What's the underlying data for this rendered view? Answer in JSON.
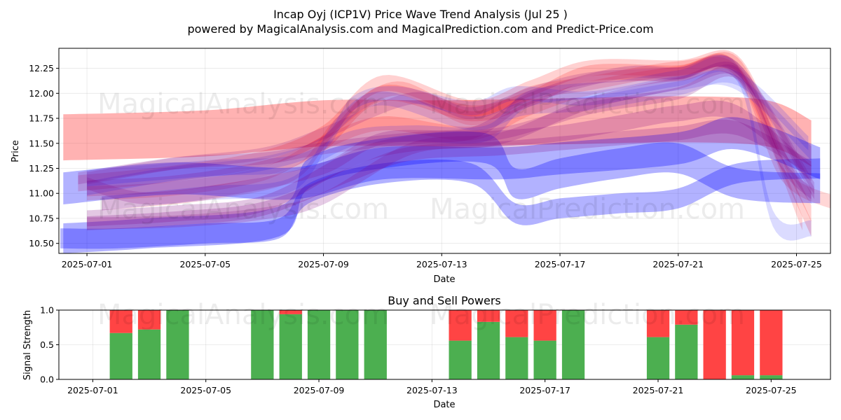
{
  "chart_data": [
    {
      "type": "line",
      "title": "Incap Oyj (ICP1V) Price Wave Trend Analysis (Jul 25 )",
      "subtitle": "powered by MagicalAnalysis.com and MagicalPrediction.com and Predict-Price.com",
      "xlabel": "Date",
      "ylabel": "Price",
      "xlim": [
        -0.95,
        25.15
      ],
      "ylim": [
        10.4,
        12.45
      ],
      "x_ticks": [
        0,
        4,
        8,
        12,
        16,
        20,
        24
      ],
      "x_tick_labels": [
        "2025-07-01",
        "2025-07-05",
        "2025-07-09",
        "2025-07-13",
        "2025-07-17",
        "2025-07-21",
        "2025-07-25"
      ],
      "y_ticks": [
        10.5,
        10.75,
        11.0,
        11.25,
        11.5,
        11.75,
        12.0,
        12.25
      ],
      "y_tick_labels": [
        "10.50",
        "10.75",
        "11.00",
        "11.25",
        "11.50",
        "11.75",
        "12.00",
        "12.25"
      ],
      "grid": true,
      "series": [
        {
          "name": "red band 1",
          "color": "#ff0000",
          "opacity": 0.3,
          "width": 0.46,
          "x": [
            -0.8,
            4,
            8,
            12,
            16,
            20,
            23,
            24.5
          ],
          "y": [
            11.56,
            11.6,
            11.7,
            11.7,
            11.72,
            11.74,
            11.7,
            11.5
          ]
        },
        {
          "name": "red band 2",
          "color": "#ff0000",
          "opacity": 0.18,
          "width": 0.16,
          "x": [
            -0.3,
            3,
            6,
            8,
            10,
            13,
            15,
            17,
            20,
            22,
            23.5,
            24.5
          ],
          "y": [
            11.1,
            11.2,
            11.35,
            11.6,
            12.1,
            11.85,
            12.05,
            12.25,
            12.25,
            12.3,
            11.4,
            10.8
          ]
        },
        {
          "name": "red band 3",
          "color": "#ff0000",
          "opacity": 0.18,
          "width": 0.16,
          "x": [
            0,
            3,
            6,
            8,
            10,
            13,
            15,
            17,
            20,
            22,
            23.5,
            24.5
          ],
          "y": [
            11.05,
            11.1,
            11.25,
            11.5,
            12.0,
            11.8,
            11.95,
            12.2,
            12.2,
            12.28,
            11.3,
            10.65
          ]
        },
        {
          "name": "red band 4",
          "color": "#ff0000",
          "opacity": 0.16,
          "width": 0.14,
          "x": [
            0.5,
            4,
            7,
            8.5,
            10.5,
            13,
            15,
            17,
            20,
            22,
            23.5,
            25.3
          ],
          "y": [
            10.9,
            11.0,
            11.2,
            11.7,
            12.05,
            11.75,
            12.0,
            12.1,
            12.25,
            12.2,
            11.2,
            10.9
          ]
        },
        {
          "name": "red band 5",
          "color": "#ff0000",
          "opacity": 0.16,
          "width": 0.14,
          "x": [
            0,
            3,
            6,
            8,
            10,
            13,
            15,
            17,
            20,
            22,
            24.2
          ],
          "y": [
            11.0,
            11.05,
            11.2,
            11.5,
            11.7,
            11.6,
            11.85,
            12.05,
            12.2,
            12.22,
            10.7
          ]
        },
        {
          "name": "blue band 1",
          "color": "#0000ff",
          "opacity": 0.3,
          "width": 0.32,
          "x": [
            -0.8,
            3,
            7,
            10,
            14,
            16,
            20,
            22,
            24.8
          ],
          "y": [
            11.05,
            11.15,
            11.1,
            11.3,
            11.3,
            11.35,
            11.45,
            11.6,
            11.3
          ]
        },
        {
          "name": "blue band 2",
          "color": "#0000ff",
          "opacity": 0.3,
          "width": 0.3,
          "x": [
            -0.8,
            2,
            6.5,
            7.5,
            10,
            13.5,
            14.5,
            16,
            18,
            20,
            22,
            24.8
          ],
          "y": [
            10.55,
            10.6,
            10.72,
            11.2,
            11.4,
            11.45,
            11.1,
            11.2,
            11.3,
            11.35,
            11.1,
            11.05
          ]
        },
        {
          "name": "blue band 3",
          "color": "#0000ff",
          "opacity": 0.3,
          "width": 0.2,
          "x": [
            -0.9,
            1,
            4,
            6.5,
            7.5,
            10,
            13,
            14.5,
            16,
            18,
            20,
            22,
            24.8
          ],
          "y": [
            10.55,
            10.55,
            10.6,
            10.65,
            11.0,
            11.2,
            11.2,
            10.8,
            10.85,
            10.9,
            10.95,
            11.2,
            11.25
          ]
        },
        {
          "name": "blue band 4",
          "color": "#0000ff",
          "opacity": 0.14,
          "width": 0.14,
          "x": [
            0,
            3,
            6,
            8,
            9,
            10.5,
            13,
            14.5,
            17,
            20,
            22,
            24.5
          ],
          "y": [
            11.05,
            11.2,
            11.3,
            11.5,
            11.9,
            12.0,
            11.85,
            12.0,
            11.95,
            12.1,
            12.1,
            11.4
          ]
        },
        {
          "name": "blue band 5",
          "color": "#0000ff",
          "opacity": 0.14,
          "width": 0.14,
          "x": [
            0.5,
            4,
            7,
            8.5,
            10,
            13,
            14.8,
            17,
            20,
            22,
            24.4
          ],
          "y": [
            10.9,
            11.0,
            11.1,
            11.7,
            11.95,
            11.7,
            11.85,
            11.9,
            12.05,
            12.15,
            11.5
          ]
        },
        {
          "name": "blue band 6",
          "color": "#0000ff",
          "opacity": 0.14,
          "width": 0.16,
          "x": [
            0,
            4,
            7,
            9,
            11,
            13.5,
            15,
            18,
            20,
            22,
            23.2,
            24.5
          ],
          "y": [
            11.15,
            11.25,
            11.3,
            11.55,
            11.6,
            11.6,
            11.95,
            12.05,
            12.15,
            12.2,
            10.75,
            10.65
          ]
        },
        {
          "name": "purple band 1",
          "color": "#800080",
          "opacity": 0.22,
          "width": 0.16,
          "x": [
            0,
            3,
            6,
            9,
            11,
            14,
            16,
            18,
            20,
            22,
            24.5
          ],
          "y": [
            10.75,
            10.8,
            10.9,
            11.35,
            11.5,
            11.55,
            11.6,
            11.7,
            11.8,
            11.8,
            11.2
          ]
        },
        {
          "name": "purple band 2",
          "color": "#800080",
          "opacity": 0.22,
          "width": 0.14,
          "x": [
            0,
            3,
            6,
            9,
            11,
            14,
            16,
            18,
            20,
            22,
            24.5
          ],
          "y": [
            10.7,
            10.75,
            10.85,
            11.2,
            11.4,
            11.45,
            11.5,
            11.55,
            11.6,
            11.65,
            11.25
          ]
        },
        {
          "name": "purple band 3",
          "color": "#800080",
          "opacity": 0.2,
          "width": 0.12,
          "x": [
            -0.3,
            3,
            6,
            8,
            11,
            14,
            17,
            20,
            22,
            23.5,
            24.5
          ],
          "y": [
            11.15,
            11.3,
            11.35,
            11.45,
            11.55,
            11.6,
            11.85,
            12.0,
            12.2,
            11.3,
            11.0
          ]
        },
        {
          "name": "purple band 4",
          "color": "#800080",
          "opacity": 0.2,
          "width": 0.12,
          "x": [
            0,
            3,
            6,
            8,
            11,
            14,
            17,
            20,
            22,
            23.5,
            24.5
          ],
          "y": [
            10.7,
            10.72,
            10.8,
            10.95,
            11.45,
            11.55,
            11.9,
            12.1,
            12.22,
            11.4,
            10.95
          ]
        },
        {
          "name": "purple band 5",
          "color": "#800080",
          "opacity": 0.2,
          "width": 0.12,
          "x": [
            0,
            2,
            5,
            8,
            10,
            13,
            15,
            18,
            20,
            22,
            24.6
          ],
          "y": [
            11.1,
            10.95,
            11.05,
            11.25,
            11.55,
            11.6,
            11.95,
            12.2,
            12.2,
            12.25,
            11.0
          ]
        },
        {
          "name": "purple band 6",
          "color": "#800080",
          "opacity": 0.18,
          "width": 0.12,
          "x": [
            0,
            3,
            6,
            8,
            11,
            13,
            15,
            17,
            20,
            22,
            24.6
          ],
          "y": [
            11.15,
            11.3,
            11.4,
            11.6,
            11.95,
            11.8,
            12.0,
            12.15,
            12.2,
            12.25,
            11.05
          ]
        }
      ],
      "watermarks": [
        "MagicalAnalysis.com",
        "MagicalPrediction.com",
        "MagicalAnalysis.com",
        "MagicalPrediction.com"
      ]
    },
    {
      "type": "bar",
      "stacked": true,
      "title": "Buy and Sell Powers",
      "xlabel": "Date",
      "ylabel": "Signal Strength",
      "xlim": [
        -1.2,
        26.1
      ],
      "ylim": [
        0,
        1.0
      ],
      "x_ticks": [
        0,
        4,
        8,
        12,
        16,
        20,
        24
      ],
      "x_tick_labels": [
        "2025-07-01",
        "2025-07-05",
        "2025-07-09",
        "2025-07-13",
        "2025-07-17",
        "2025-07-21",
        "2025-07-25"
      ],
      "y_ticks": [
        0.0,
        0.5,
        1.0
      ],
      "y_tick_labels": [
        "0.0",
        "0.5",
        "1.0"
      ],
      "x": [
        1,
        2,
        3,
        6,
        7,
        8,
        9,
        10,
        13,
        14,
        15,
        16,
        17,
        20,
        21,
        22,
        23,
        24
      ],
      "series": [
        {
          "name": "Buy",
          "color": "#4caf50",
          "values": [
            0.67,
            0.72,
            1.0,
            1.0,
            0.94,
            1.0,
            1.0,
            1.0,
            0.56,
            0.83,
            0.61,
            0.56,
            1.0,
            0.61,
            0.79,
            0.0,
            0.06,
            0.06
          ]
        },
        {
          "name": "Sell",
          "color": "#ff4444",
          "values": [
            0.33,
            0.28,
            0.0,
            0.0,
            0.06,
            0.0,
            0.0,
            0.0,
            0.44,
            0.17,
            0.39,
            0.44,
            0.0,
            0.39,
            0.21,
            1.0,
            0.94,
            0.94
          ]
        }
      ],
      "watermarks": [
        "MagicalAnalysis.com",
        "MagicalPrediction.com"
      ]
    }
  ]
}
